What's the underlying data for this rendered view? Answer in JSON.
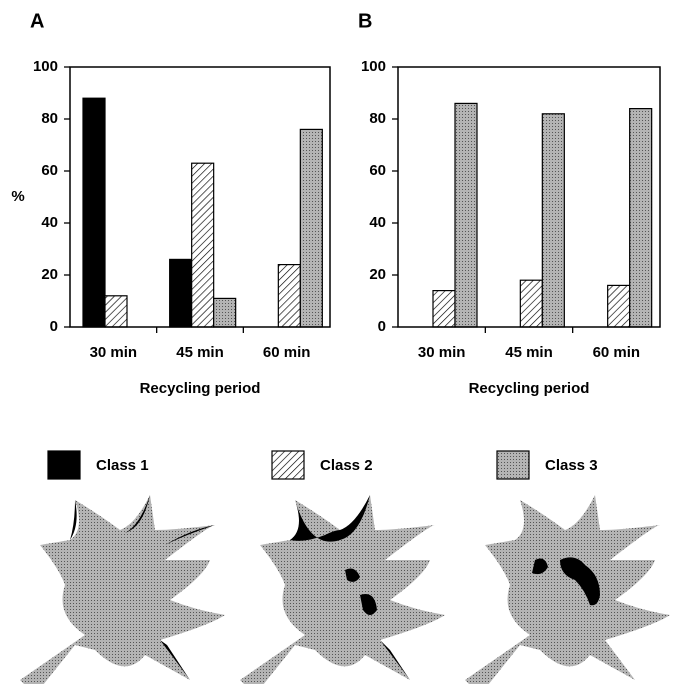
{
  "chart_data": [
    {
      "type": "bar",
      "panel": "A",
      "ylabel": "%",
      "xlabel": "Recycling period",
      "categories": [
        "30 min",
        "45 min",
        "60 min"
      ],
      "ylim": [
        0,
        100
      ],
      "yticks": [
        0,
        20,
        40,
        60,
        80,
        100
      ],
      "series": [
        {
          "name": "Class 1",
          "color": "#000000",
          "fill": "solid",
          "values": [
            88,
            26,
            0
          ]
        },
        {
          "name": "Class 2",
          "color": "#000000",
          "fill": "hatch",
          "values": [
            12,
            63,
            24
          ]
        },
        {
          "name": "Class 3",
          "color": "#8c8c8c",
          "fill": "dots",
          "values": [
            0,
            11,
            76
          ]
        }
      ]
    },
    {
      "type": "bar",
      "panel": "B",
      "xlabel": "Recycling period",
      "categories": [
        "30 min",
        "45 min",
        "60 min"
      ],
      "ylim": [
        0,
        100
      ],
      "yticks": [
        0,
        20,
        40,
        60,
        80,
        100
      ],
      "series": [
        {
          "color": "#000000",
          "fill": "solid",
          "values": [
            0,
            0,
            0
          ]
        },
        {
          "color": "#000000",
          "fill": "hatch",
          "values": [
            14,
            18,
            16
          ]
        },
        {
          "color": "#8c8c8c",
          "fill": "dots",
          "values": [
            86,
            82,
            84
          ]
        }
      ]
    }
  ]
}
